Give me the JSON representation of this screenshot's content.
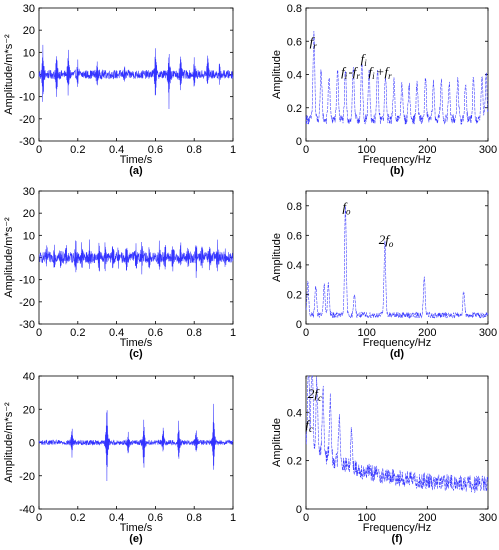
{
  "chart_data": [
    {
      "id": "a",
      "type": "line",
      "caption": "(a)",
      "xlabel": "Time/s",
      "ylabel": "Amplitude/m*s⁻²",
      "xlim": [
        0,
        1
      ],
      "ylim": [
        -30,
        30
      ],
      "xticks": [
        "0",
        "0.2",
        "0.4",
        "0.6",
        "0.8",
        "1"
      ],
      "yticks": [
        "-30",
        "-20",
        "-10",
        "0",
        "10",
        "20",
        "30"
      ],
      "color": "#3333ff",
      "signal": {
        "kind": "impulse",
        "noise": 2,
        "spikes": [
          {
            "t": 0.02,
            "up": 12,
            "dn": -14
          },
          {
            "t": 0.09,
            "up": 10,
            "dn": -12
          },
          {
            "t": 0.15,
            "up": 12,
            "dn": -10
          },
          {
            "t": 0.2,
            "up": 5,
            "dn": -5
          },
          {
            "t": 0.3,
            "up": 4,
            "dn": -4
          },
          {
            "t": 0.44,
            "up": 3,
            "dn": -3
          },
          {
            "t": 0.6,
            "up": 12,
            "dn": -10
          },
          {
            "t": 0.67,
            "up": 12,
            "dn": -14
          },
          {
            "t": 0.73,
            "up": 8,
            "dn": -8
          },
          {
            "t": 0.8,
            "up": 7,
            "dn": -8
          },
          {
            "t": 0.87,
            "up": 10,
            "dn": -5
          },
          {
            "t": 0.93,
            "up": 4,
            "dn": -4
          }
        ]
      },
      "annotations": []
    },
    {
      "id": "b",
      "type": "line",
      "caption": "(b)",
      "xlabel": "Frequency/Hz",
      "ylabel": "Amplitude",
      "xlim": [
        0,
        300
      ],
      "ylim": [
        0,
        0.8
      ],
      "xticks": [
        "0",
        "100",
        "200",
        "300"
      ],
      "yticks": [
        "0",
        "0.2",
        "0.4",
        "0.6",
        "0.8"
      ],
      "color": "#3333ff",
      "signal": {
        "kind": "spectrum",
        "floor": 0.1,
        "noise": 0.06,
        "peaks": [
          {
            "f": 13,
            "a": 0.52
          },
          {
            "f": 25,
            "a": 0.3
          },
          {
            "f": 38,
            "a": 0.26
          },
          {
            "f": 52,
            "a": 0.3
          },
          {
            "f": 65,
            "a": 0.28
          },
          {
            "f": 78,
            "a": 0.32
          },
          {
            "f": 92,
            "a": 0.33
          },
          {
            "f": 104,
            "a": 0.3
          },
          {
            "f": 118,
            "a": 0.28
          },
          {
            "f": 131,
            "a": 0.25
          },
          {
            "f": 145,
            "a": 0.24
          },
          {
            "f": 158,
            "a": 0.22
          },
          {
            "f": 170,
            "a": 0.21
          },
          {
            "f": 183,
            "a": 0.22
          },
          {
            "f": 197,
            "a": 0.24
          },
          {
            "f": 210,
            "a": 0.22
          },
          {
            "f": 223,
            "a": 0.23
          },
          {
            "f": 236,
            "a": 0.22
          },
          {
            "f": 250,
            "a": 0.24
          },
          {
            "f": 263,
            "a": 0.22
          },
          {
            "f": 276,
            "a": 0.24
          },
          {
            "f": 290,
            "a": 0.26
          },
          {
            "f": 297,
            "a": 0.27
          }
        ]
      },
      "annotations": [
        {
          "base": "f",
          "sub": "r",
          "x": 6,
          "y": 0.57
        },
        {
          "base": "f",
          "sub": "i",
          "x": 58,
          "y": 0.39
        },
        {
          "base": "-f",
          "sub": "r",
          "x": 70,
          "y": 0.39
        },
        {
          "base": "f",
          "sub": "i",
          "x": 90,
          "y": 0.47
        },
        {
          "base": "f",
          "sub": "i",
          "x": 103,
          "y": 0.39
        },
        {
          "base": "+f",
          "sub": "r",
          "x": 115,
          "y": 0.39
        }
      ]
    },
    {
      "id": "c",
      "type": "line",
      "caption": "(c)",
      "xlabel": "Time/s",
      "ylabel": "Amplitude/m*s⁻²",
      "xlim": [
        0,
        1
      ],
      "ylim": [
        -30,
        30
      ],
      "xticks": [
        "0",
        "0.2",
        "0.4",
        "0.6",
        "0.8",
        "1"
      ],
      "yticks": [
        "-30",
        "-20",
        "-10",
        "0",
        "10",
        "20",
        "30"
      ],
      "color": "#3333ff",
      "signal": {
        "kind": "impulse",
        "noise": 2.5,
        "spikes": [
          {
            "t": 0.04,
            "up": 4,
            "dn": -4
          },
          {
            "t": 0.08,
            "up": 6,
            "dn": -5
          },
          {
            "t": 0.11,
            "up": 5,
            "dn": -6
          },
          {
            "t": 0.14,
            "up": 6,
            "dn": -5
          },
          {
            "t": 0.19,
            "up": 7,
            "dn": -6
          },
          {
            "t": 0.22,
            "up": 5,
            "dn": -5
          },
          {
            "t": 0.26,
            "up": 6,
            "dn": -5
          },
          {
            "t": 0.31,
            "up": 7,
            "dn": -7
          },
          {
            "t": 0.34,
            "up": 6,
            "dn": -5
          },
          {
            "t": 0.38,
            "up": 6,
            "dn": -6
          },
          {
            "t": 0.41,
            "up": 5,
            "dn": -5
          },
          {
            "t": 0.45,
            "up": 6,
            "dn": -6
          },
          {
            "t": 0.5,
            "up": 6,
            "dn": -5
          },
          {
            "t": 0.53,
            "up": 7,
            "dn": -6
          },
          {
            "t": 0.57,
            "up": 5,
            "dn": -6
          },
          {
            "t": 0.62,
            "up": 6,
            "dn": -6
          },
          {
            "t": 0.65,
            "up": 6,
            "dn": -5
          },
          {
            "t": 0.69,
            "up": 6,
            "dn": -6
          },
          {
            "t": 0.73,
            "up": 7,
            "dn": -6
          },
          {
            "t": 0.77,
            "up": 5,
            "dn": -5
          },
          {
            "t": 0.81,
            "up": 6,
            "dn": -7
          },
          {
            "t": 0.84,
            "up": 5,
            "dn": -5
          },
          {
            "t": 0.88,
            "up": 6,
            "dn": -6
          },
          {
            "t": 0.92,
            "up": 6,
            "dn": -5
          },
          {
            "t": 0.96,
            "up": 5,
            "dn": -5
          }
        ]
      },
      "annotations": []
    },
    {
      "id": "d",
      "type": "line",
      "caption": "(d)",
      "xlabel": "Frequency/Hz",
      "ylabel": "Amplitude",
      "xlim": [
        0,
        300
      ],
      "ylim": [
        0,
        0.9
      ],
      "xticks": [
        "0",
        "100",
        "200",
        "300"
      ],
      "yticks": [
        "0",
        "0.2",
        "0.4",
        "0.6",
        "0.8"
      ],
      "color": "#3333ff",
      "signal": {
        "kind": "spectrum",
        "floor": 0.04,
        "noise": 0.04,
        "peaks": [
          {
            "f": 3,
            "a": 0.22
          },
          {
            "f": 16,
            "a": 0.2
          },
          {
            "f": 30,
            "a": 0.2
          },
          {
            "f": 37,
            "a": 0.21
          },
          {
            "f": 65,
            "a": 0.72
          },
          {
            "f": 80,
            "a": 0.14
          },
          {
            "f": 130,
            "a": 0.5
          },
          {
            "f": 195,
            "a": 0.25
          },
          {
            "f": 260,
            "a": 0.17
          }
        ]
      },
      "annotations": [
        {
          "base": "f",
          "sub": "o",
          "x": 60,
          "y": 0.76
        },
        {
          "base": "2f",
          "sub": "o",
          "x": 120,
          "y": 0.54
        }
      ]
    },
    {
      "id": "e",
      "type": "line",
      "caption": "(e)",
      "xlabel": "Time/s",
      "ylabel": "Amplitude/m*s⁻²",
      "xlim": [
        0,
        1
      ],
      "ylim": [
        -40,
        40
      ],
      "xticks": [
        "0",
        "0.2",
        "0.4",
        "0.6",
        "0.8",
        "1"
      ],
      "yticks": [
        "-40",
        "-20",
        "0",
        "20",
        "40"
      ],
      "color": "#3333ff",
      "signal": {
        "kind": "impulse",
        "noise": 1.5,
        "spikes": [
          {
            "t": 0.17,
            "up": 10,
            "dn": -8
          },
          {
            "t": 0.35,
            "up": 24,
            "dn": -24
          },
          {
            "t": 0.46,
            "up": 6,
            "dn": -8
          },
          {
            "t": 0.54,
            "up": 14,
            "dn": -18
          },
          {
            "t": 0.64,
            "up": 10,
            "dn": -6
          },
          {
            "t": 0.72,
            "up": 12,
            "dn": -12
          },
          {
            "t": 0.81,
            "up": 8,
            "dn": -6
          },
          {
            "t": 0.9,
            "up": 22,
            "dn": -20
          }
        ]
      },
      "annotations": []
    },
    {
      "id": "f",
      "type": "line",
      "caption": "(f)",
      "xlabel": "Frequency/Hz",
      "ylabel": "Amplitude",
      "xlim": [
        0,
        300
      ],
      "ylim": [
        0,
        0.55
      ],
      "xticks": [
        "0",
        "100",
        "200",
        "300"
      ],
      "yticks": [
        "0",
        "0.2",
        "0.4"
      ],
      "color": "#3333ff",
      "signal": {
        "kind": "spectrum",
        "floor": 0.06,
        "noise": 0.07,
        "decay": 0.18,
        "peaks": [
          {
            "f": 4,
            "a": 0.34
          },
          {
            "f": 10,
            "a": 0.44
          },
          {
            "f": 18,
            "a": 0.3
          },
          {
            "f": 28,
            "a": 0.27
          },
          {
            "f": 40,
            "a": 0.24
          },
          {
            "f": 55,
            "a": 0.2
          },
          {
            "f": 75,
            "a": 0.16
          }
        ]
      },
      "annotations": [
        {
          "base": "2f",
          "sub": "c",
          "x": 3,
          "y": 0.46
        },
        {
          "base": "f",
          "sub": "c",
          "x": -1,
          "y": 0.33
        }
      ]
    }
  ]
}
